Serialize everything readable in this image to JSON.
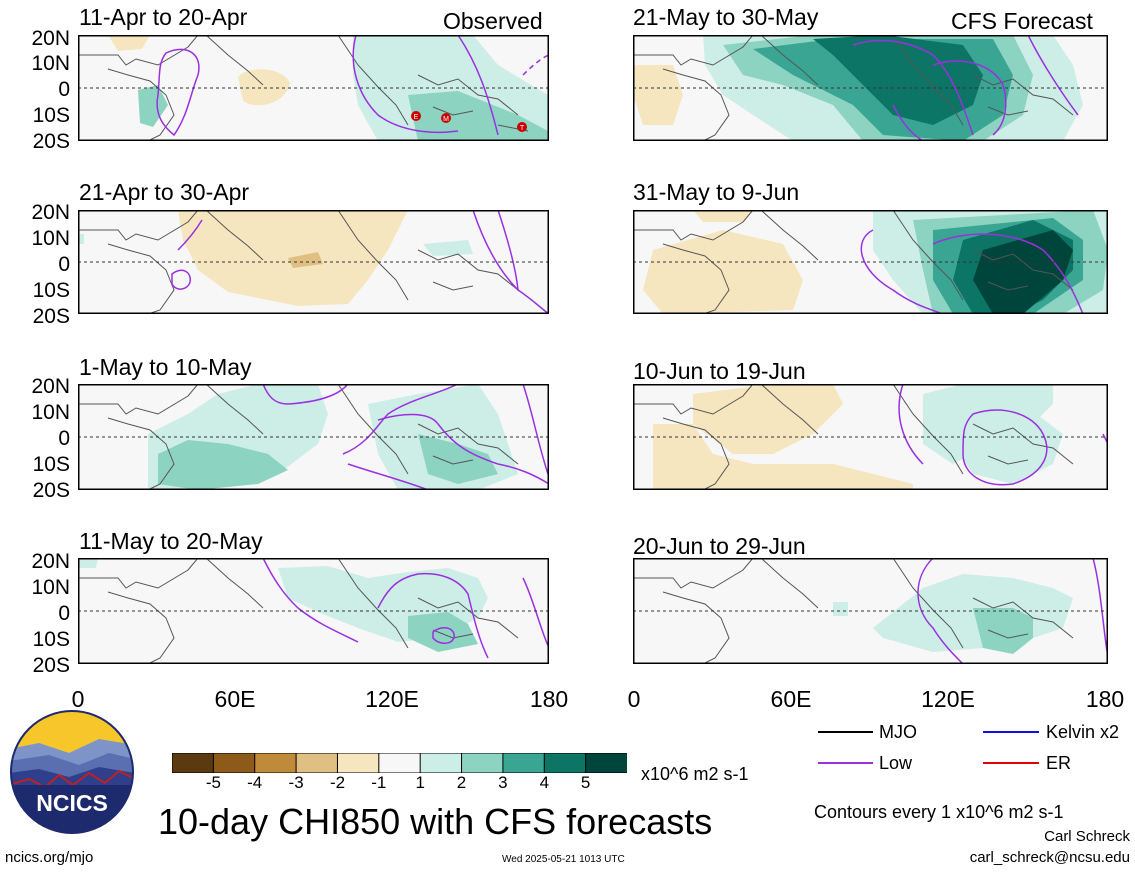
{
  "column_headers": {
    "left": "Observed",
    "right": "CFS Forecast"
  },
  "panels": [
    {
      "period": "11-Apr to 20-Apr"
    },
    {
      "period": "21-Apr to 30-Apr"
    },
    {
      "period": "1-May to 10-May"
    },
    {
      "period": "11-May to 20-May"
    },
    {
      "period": "21-May to 30-May"
    },
    {
      "period": "31-May to 9-Jun"
    },
    {
      "period": "10-Jun to 19-Jun"
    },
    {
      "period": "20-Jun to 29-Jun"
    }
  ],
  "lat_labels": [
    "20N",
    "10N",
    "0",
    "10S",
    "20S"
  ],
  "lon_labels": [
    "0",
    "60E",
    "120E",
    "180"
  ],
  "storm_markers": [
    "E",
    "M",
    "T"
  ],
  "colorbar": {
    "ticks": [
      "-5",
      "-4",
      "-3",
      "-2",
      "-1",
      "1",
      "2",
      "3",
      "4",
      "5"
    ],
    "colors": [
      "#5a3a0e",
      "#8e5a1a",
      "#bf8a3a",
      "#e0c082",
      "#f6e6c0",
      "#f7f7f7",
      "#cdeee6",
      "#8cd3c2",
      "#3aa593",
      "#0d7565",
      "#00453b"
    ],
    "units": "x10^6 m2 s-1"
  },
  "legend": {
    "mjo": {
      "label": "MJO",
      "color": "#000000"
    },
    "kelvin": {
      "label": "Kelvin x2",
      "color": "#1010e0"
    },
    "low": {
      "label": "Low",
      "color": "#9a30e0"
    },
    "er": {
      "label": "ER",
      "color": "#e00000"
    }
  },
  "main_title": "10-day CHI850 with CFS forecasts",
  "logo_text": "NCICS",
  "contour_note": "Contours every 1 x10^6 m2 s-1",
  "author": "Carl Schreck",
  "email": "carl_schreck@ncsu.edu",
  "website": "ncics.org/mjo",
  "timestamp": "Wed 2025-05-21 1013 UTC"
}
